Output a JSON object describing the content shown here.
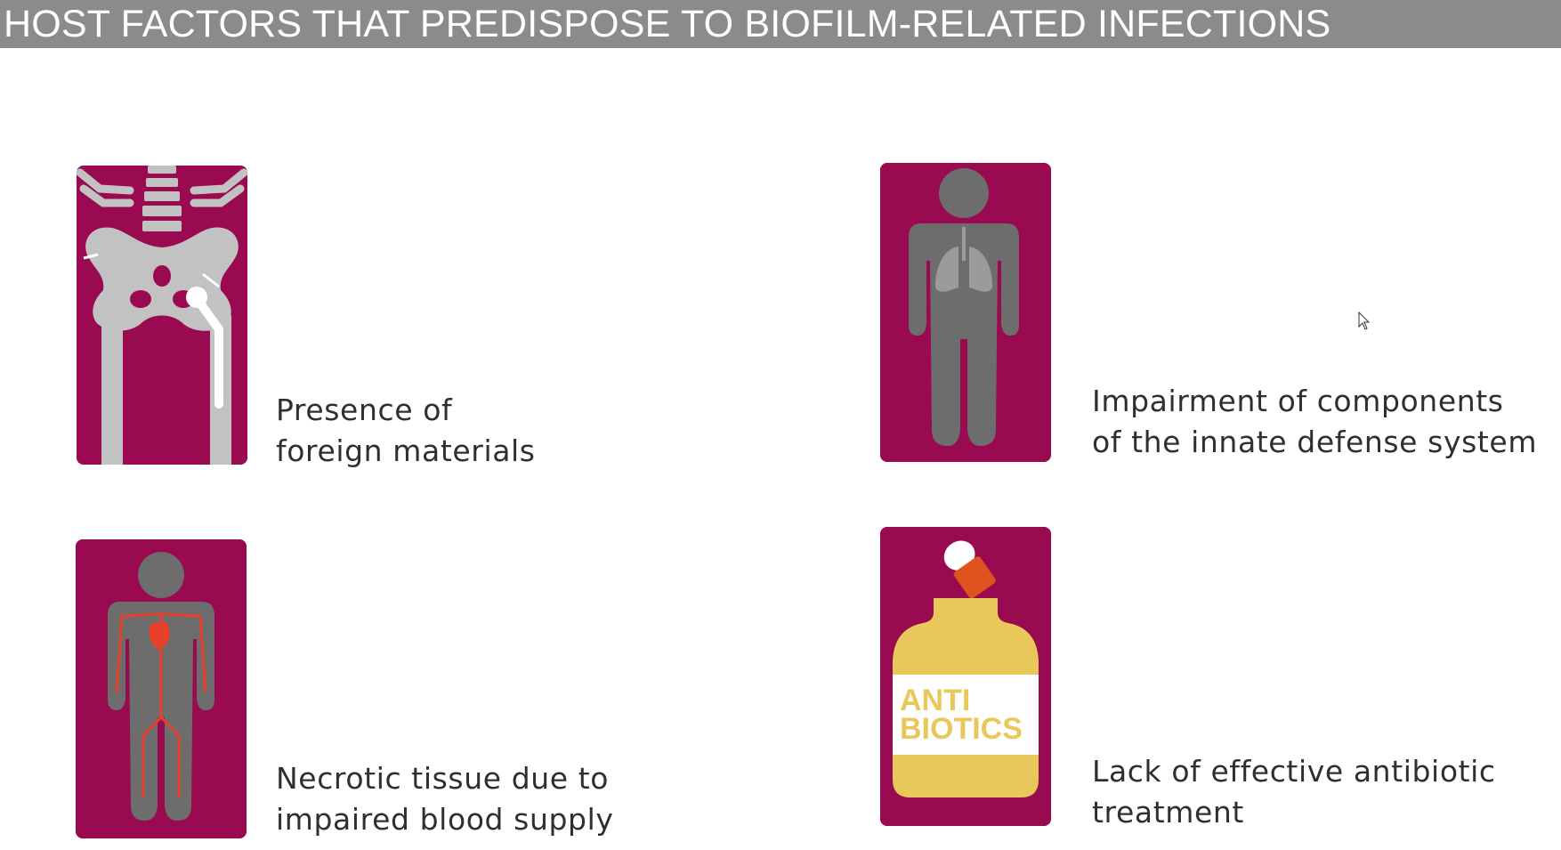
{
  "header": {
    "title": "HOST FACTORS THAT PREDISPOSE TO BIOFILM-RELATED INFECTIONS"
  },
  "factors": [
    {
      "id": "foreign-materials",
      "icon": "hip-implant-xray-icon",
      "line1": "Presence of",
      "line2": "foreign materials"
    },
    {
      "id": "innate-defense",
      "icon": "human-lungs-icon",
      "line1": "Impairment of components",
      "line2": "of the innate defense system"
    },
    {
      "id": "necrotic-tissue",
      "icon": "human-blood-vessels-icon",
      "line1": "Necrotic tissue due to",
      "line2": "impaired blood supply"
    },
    {
      "id": "antibiotic-treatment",
      "icon": "antibiotics-bottle-icon",
      "line1": "Lack of effective antibiotic",
      "line2": "treatment",
      "bottle_label_1": "ANTI",
      "bottle_label_2": "BIOTICS"
    }
  ],
  "colors": {
    "card": "#990a50",
    "header_bg": "#8b8b8b",
    "figure_gray": "#6d6d6d",
    "bone": "#c7c7c7",
    "vessel_red": "#e8402a",
    "bottle_yellow": "#e8c85a",
    "pill_orange": "#e0531e"
  }
}
